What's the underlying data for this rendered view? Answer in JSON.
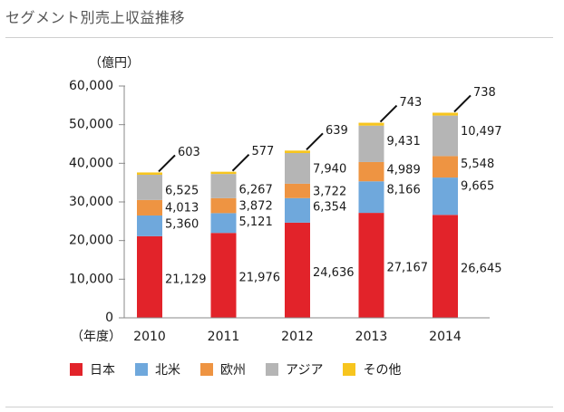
{
  "title": "セグメント別売上収益推移",
  "colors": {
    "japan": "#e2232a",
    "north_america": "#6fa8dc",
    "europe": "#ee9442",
    "asia": "#b5b5b5",
    "other": "#f7c51e",
    "axis": "#8a8a8a"
  },
  "chart_data": {
    "type": "bar",
    "stacked": true,
    "title": "セグメント別売上収益推移",
    "ylabel": "（億円）",
    "xlabel": "（年度）",
    "ylim": [
      0,
      60000
    ],
    "yticks": [
      0,
      10000,
      20000,
      30000,
      40000,
      50000,
      60000
    ],
    "ytick_labels": [
      "0",
      "10,000",
      "20,000",
      "30,000",
      "40,000",
      "50,000",
      "60,000"
    ],
    "categories": [
      "2010",
      "2011",
      "2012",
      "2013",
      "2014"
    ],
    "series": [
      {
        "name": "日本",
        "color": "#e2232a",
        "values": [
          21129,
          21976,
          24636,
          27167,
          26645
        ],
        "labels": [
          "21,129",
          "21,976",
          "24,636",
          "27,167",
          "26,645"
        ]
      },
      {
        "name": "北米",
        "color": "#6fa8dc",
        "values": [
          5360,
          5121,
          6354,
          8166,
          9665
        ],
        "labels": [
          "5,360",
          "5,121",
          "6,354",
          "8,166",
          "9,665"
        ]
      },
      {
        "name": "欧州",
        "color": "#ee9442",
        "values": [
          4013,
          3872,
          3722,
          4989,
          5548
        ],
        "labels": [
          "4,013",
          "3,872",
          "3,722",
          "4,989",
          "5,548"
        ]
      },
      {
        "name": "アジア",
        "color": "#b5b5b5",
        "values": [
          6525,
          6267,
          7940,
          9431,
          10497
        ],
        "labels": [
          "6,525",
          "6,267",
          "7,940",
          "9,431",
          "10,497"
        ]
      },
      {
        "name": "その他",
        "color": "#f7c51e",
        "values": [
          603,
          577,
          639,
          743,
          738
        ],
        "labels": [
          "603",
          "577",
          "639",
          "743",
          "738"
        ]
      }
    ],
    "legend": "bottom-left",
    "grid": false
  }
}
